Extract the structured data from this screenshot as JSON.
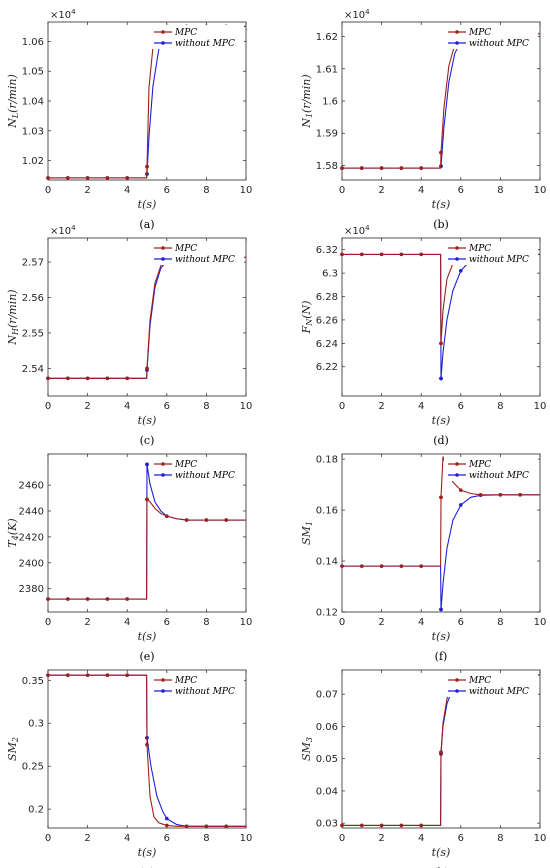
{
  "figure": {
    "colors": {
      "mpc": "#a0201c",
      "without_mpc": "#1f1fd6",
      "axis": "#262626"
    }
  },
  "chart_data": [
    {
      "type": "line",
      "panel": "(a)",
      "ylabel": "N_L(r/min)",
      "xlabel": "t(s)",
      "exponent": "×10^4",
      "xlim": [
        0,
        10
      ],
      "ylim": [
        1.0135,
        1.0665
      ],
      "xticks": [
        0,
        2,
        4,
        6,
        8,
        10
      ],
      "yticks": [
        1.02,
        1.03,
        1.04,
        1.05,
        1.06
      ],
      "ytick_labels": [
        "1.02",
        "1.03",
        "1.04",
        "1.05",
        "1.06"
      ],
      "legend": [
        "MPC",
        "without MPC"
      ],
      "series": [
        {
          "name": "MPC",
          "x": [
            0,
            4.98,
            5,
            5.1,
            5.3,
            5.6,
            6,
            6.5,
            7,
            8,
            10
          ],
          "y": [
            1.0142,
            1.0142,
            1.018,
            1.0445,
            1.058,
            1.0633,
            1.0647,
            1.065,
            1.065,
            1.065,
            1.065
          ]
        },
        {
          "name": "without MPC",
          "x": [
            0,
            4.98,
            5,
            5.1,
            5.3,
            5.6,
            6,
            6.5,
            7,
            8,
            10
          ],
          "y": [
            1.0142,
            1.0142,
            1.0155,
            1.028,
            1.045,
            1.0575,
            1.0625,
            1.0645,
            1.065,
            1.065,
            1.065
          ]
        }
      ]
    },
    {
      "type": "line",
      "panel": "(b)",
      "ylabel": "N_1(r/min)",
      "xlabel": "t(s)",
      "exponent": "×10^4",
      "xlim": [
        0,
        10
      ],
      "ylim": [
        1.5755,
        1.6245
      ],
      "xticks": [
        0,
        2,
        4,
        6,
        8,
        10
      ],
      "yticks": [
        1.58,
        1.59,
        1.6,
        1.61,
        1.62
      ],
      "ytick_labels": [
        "1.58",
        "1.59",
        "1.6",
        "1.61",
        "1.62"
      ],
      "legend": [
        "MPC",
        "without MPC"
      ],
      "series": [
        {
          "name": "MPC",
          "x": [
            0,
            4.98,
            5,
            5.15,
            5.4,
            5.7,
            6,
            6.5,
            7,
            8,
            10
          ],
          "y": [
            1.5792,
            1.5792,
            1.584,
            1.598,
            1.611,
            1.6175,
            1.6198,
            1.6207,
            1.6208,
            1.6208,
            1.6208
          ]
        },
        {
          "name": "without MPC",
          "x": [
            0,
            4.98,
            5,
            5.15,
            5.4,
            5.7,
            6,
            6.5,
            7,
            8,
            10
          ],
          "y": [
            1.5792,
            1.5792,
            1.5798,
            1.592,
            1.606,
            1.6148,
            1.6185,
            1.6203,
            1.6208,
            1.6208,
            1.6208
          ]
        }
      ]
    },
    {
      "type": "line",
      "panel": "(c)",
      "ylabel": "N_H(r/min)",
      "xlabel": "t(s)",
      "exponent": "×10^4",
      "xlim": [
        0,
        10
      ],
      "ylim": [
        2.5322,
        2.5768
      ],
      "xticks": [
        0,
        2,
        4,
        6,
        8,
        10
      ],
      "yticks": [
        2.54,
        2.55,
        2.56,
        2.57
      ],
      "ytick_labels": [
        "2.54",
        "2.55",
        "2.56",
        "2.57"
      ],
      "legend": [
        "MPC",
        "without MPC"
      ],
      "series": [
        {
          "name": "MPC",
          "x": [
            0,
            4.98,
            5,
            5.15,
            5.4,
            5.7,
            6,
            6.5,
            7,
            8,
            10
          ],
          "y": [
            2.5372,
            2.5372,
            2.54,
            2.5535,
            2.564,
            2.569,
            2.5705,
            2.5712,
            2.5713,
            2.5713,
            2.5713
          ]
        },
        {
          "name": "without MPC",
          "x": [
            0,
            4.98,
            5,
            5.15,
            5.4,
            5.7,
            6,
            6.5,
            7,
            8,
            10
          ],
          "y": [
            2.5372,
            2.5372,
            2.5395,
            2.552,
            2.5628,
            2.5683,
            2.5703,
            2.5711,
            2.5713,
            2.5713,
            2.5713
          ]
        }
      ]
    },
    {
      "type": "line",
      "panel": "(d)",
      "ylabel": "F_N(N)",
      "xlabel": "t(s)",
      "exponent": "×10^4",
      "xlim": [
        0,
        10
      ],
      "ylim": [
        6.195,
        6.33
      ],
      "xticks": [
        0,
        2,
        4,
        6,
        8,
        10
      ],
      "yticks": [
        6.22,
        6.24,
        6.26,
        6.28,
        6.3,
        6.32
      ],
      "ytick_labels": [
        "6.22",
        "6.24",
        "6.26",
        "6.28",
        "6.3",
        "6.32"
      ],
      "legend": [
        "MPC",
        "without MPC"
      ],
      "series": [
        {
          "name": "MPC",
          "x": [
            0,
            4.98,
            5,
            5.1,
            5.3,
            5.6,
            6,
            6.5,
            7,
            8,
            10
          ],
          "y": [
            6.316,
            6.316,
            6.24,
            6.268,
            6.295,
            6.308,
            6.313,
            6.315,
            6.316,
            6.316,
            6.316
          ]
        },
        {
          "name": "without MPC",
          "x": [
            0,
            4.98,
            5,
            5.1,
            5.3,
            5.6,
            6,
            6.5,
            7,
            8,
            10
          ],
          "y": [
            6.316,
            6.316,
            6.21,
            6.232,
            6.26,
            6.285,
            6.302,
            6.311,
            6.315,
            6.316,
            6.316
          ]
        }
      ]
    },
    {
      "type": "line",
      "panel": "(e)",
      "ylabel": "T_4(K)",
      "xlabel": "t(s)",
      "xlim": [
        0,
        10
      ],
      "ylim": [
        2362,
        2484
      ],
      "xticks": [
        0,
        2,
        4,
        6,
        8,
        10
      ],
      "yticks": [
        2380,
        2400,
        2420,
        2440,
        2460
      ],
      "ytick_labels": [
        "2380",
        "2400",
        "2420",
        "2440",
        "2460"
      ],
      "legend": [
        "MPC",
        "without MPC"
      ],
      "series": [
        {
          "name": "MPC",
          "x": [
            0,
            4.98,
            5,
            5.15,
            5.4,
            5.7,
            6,
            6.5,
            7,
            8,
            10
          ],
          "y": [
            2372,
            2372,
            2449,
            2447,
            2442,
            2438,
            2436,
            2434,
            2433,
            2433,
            2433
          ]
        },
        {
          "name": "without MPC",
          "x": [
            0,
            4.98,
            5,
            5.15,
            5.4,
            5.7,
            6,
            6.5,
            7,
            8,
            10
          ],
          "y": [
            2372,
            2372,
            2476,
            2461,
            2447,
            2440,
            2436,
            2434,
            2433,
            2433,
            2433
          ]
        }
      ]
    },
    {
      "type": "line",
      "panel": "(f)",
      "ylabel": "SM_1",
      "xlabel": "t(s)",
      "xlim": [
        0,
        10
      ],
      "ylim": [
        0.12,
        0.182
      ],
      "xticks": [
        0,
        2,
        4,
        6,
        8,
        10
      ],
      "yticks": [
        0.12,
        0.14,
        0.16,
        0.18
      ],
      "ytick_labels": [
        "0.12",
        "0.14",
        "0.16",
        "0.18"
      ],
      "legend": [
        "MPC",
        "without MPC"
      ],
      "series": [
        {
          "name": "MPC",
          "x": [
            0,
            4.98,
            5,
            5.1,
            5.3,
            5.6,
            6,
            6.5,
            7,
            8,
            10
          ],
          "y": [
            0.138,
            0.138,
            0.165,
            0.181,
            0.176,
            0.171,
            0.1678,
            0.1665,
            0.166,
            0.166,
            0.166
          ]
        },
        {
          "name": "without MPC",
          "x": [
            0,
            4.98,
            5,
            5.1,
            5.3,
            5.6,
            6,
            6.5,
            7,
            8,
            10
          ],
          "y": [
            0.138,
            0.138,
            0.121,
            0.131,
            0.145,
            0.156,
            0.162,
            0.165,
            0.1658,
            0.166,
            0.166
          ]
        }
      ]
    },
    {
      "type": "line",
      "panel": "(g)",
      "ylabel": "SM_2",
      "xlabel": "t(s)",
      "xlim": [
        0,
        10
      ],
      "ylim": [
        0.178,
        0.362
      ],
      "xticks": [
        0,
        2,
        4,
        6,
        8,
        10
      ],
      "yticks": [
        0.2,
        0.25,
        0.3,
        0.35
      ],
      "ytick_labels": [
        "0.2",
        "0.25",
        "0.3",
        "0.35"
      ],
      "legend": [
        "MPC",
        "without MPC"
      ],
      "series": [
        {
          "name": "MPC",
          "x": [
            0,
            4.98,
            5,
            5.15,
            5.35,
            5.6,
            6,
            6.5,
            7,
            8,
            10
          ],
          "y": [
            0.356,
            0.356,
            0.275,
            0.215,
            0.191,
            0.184,
            0.181,
            0.18,
            0.18,
            0.18,
            0.18
          ]
        },
        {
          "name": "without MPC",
          "x": [
            0,
            4.98,
            5,
            5.2,
            5.5,
            5.8,
            6,
            6.5,
            7,
            8,
            10
          ],
          "y": [
            0.356,
            0.356,
            0.283,
            0.25,
            0.215,
            0.197,
            0.189,
            0.182,
            0.18,
            0.18,
            0.18
          ]
        }
      ]
    },
    {
      "type": "line",
      "panel": "(h)",
      "ylabel": "SM_3",
      "xlabel": "t(s)",
      "xlim": [
        0,
        10
      ],
      "ylim": [
        0.0285,
        0.0775
      ],
      "xticks": [
        0,
        2,
        4,
        6,
        8,
        10
      ],
      "yticks": [
        0.03,
        0.04,
        0.05,
        0.06,
        0.07
      ],
      "ytick_labels": [
        "0.03",
        "0.04",
        "0.05",
        "0.06",
        "0.07"
      ],
      "legend": [
        "MPC",
        "without MPC"
      ],
      "series": [
        {
          "name": "MPC",
          "x": [
            0,
            4.98,
            5,
            5.1,
            5.3,
            5.6,
            6,
            6.5,
            7,
            8,
            10
          ],
          "y": [
            0.0293,
            0.0293,
            0.052,
            0.061,
            0.0685,
            0.073,
            0.0752,
            0.0758,
            0.076,
            0.076,
            0.076
          ]
        },
        {
          "name": "without MPC",
          "x": [
            0,
            4.98,
            5,
            5.1,
            5.3,
            5.6,
            6,
            6.5,
            7,
            8,
            10
          ],
          "y": [
            0.0293,
            0.0293,
            0.0515,
            0.06,
            0.067,
            0.0718,
            0.0745,
            0.0755,
            0.0759,
            0.076,
            0.076
          ]
        }
      ]
    }
  ]
}
